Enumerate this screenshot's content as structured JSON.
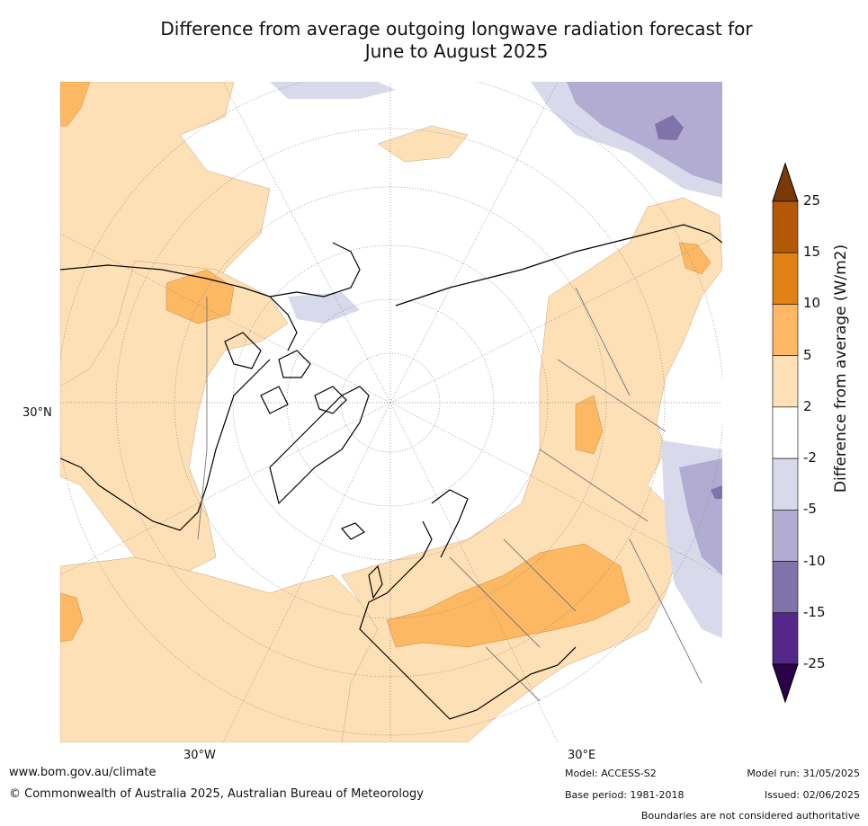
{
  "title": "Difference from average outgoing longwave radiation forecast for June to August 2025",
  "title_line1": "Difference from average outgoing longwave radiation forecast for",
  "title_line2": "June to August 2025",
  "map": {
    "projection": "north-polar-stereographic",
    "labels": {
      "lat": "30°N",
      "lon_west": "30°W",
      "lon_east": "30°E"
    },
    "colors": {
      "land_outline": "#000000",
      "border": "#777777",
      "graticule": "#888888"
    }
  },
  "colorbar": {
    "title": "Difference from average (W/m2)",
    "ticks": [
      "25",
      "15",
      "10",
      "5",
      "2",
      "-2",
      "-5",
      "-10",
      "-15",
      "-25"
    ],
    "bins": [
      {
        "range": ">25",
        "color": "#7a3a08"
      },
      {
        "range": "15–25",
        "color": "#b35807"
      },
      {
        "range": "10–15",
        "color": "#e08214"
      },
      {
        "range": "5–10",
        "color": "#fdb863"
      },
      {
        "range": "2–5",
        "color": "#fee0b6"
      },
      {
        "range": "-2–2",
        "color": "#ffffff"
      },
      {
        "range": "-5–-2",
        "color": "#d8daeb"
      },
      {
        "range": "-10–-5",
        "color": "#b2abd2"
      },
      {
        "range": "-15–-10",
        "color": "#8073ac"
      },
      {
        "range": "-25–-15",
        "color": "#542788"
      },
      {
        "range": "<-25",
        "color": "#2d004b"
      }
    ]
  },
  "footer": {
    "url": "www.bom.gov.au/climate",
    "copyright": "© Commonwealth of Australia 2025, Australian Bureau of Meteorology",
    "model": "Model: ACCESS-S2",
    "base_period": "Base period: 1981-2018",
    "model_run": "Model run: 31/05/2025",
    "issued": "Issued: 02/06/2025",
    "disclaimer": "Boundaries are not considered authoritative"
  }
}
